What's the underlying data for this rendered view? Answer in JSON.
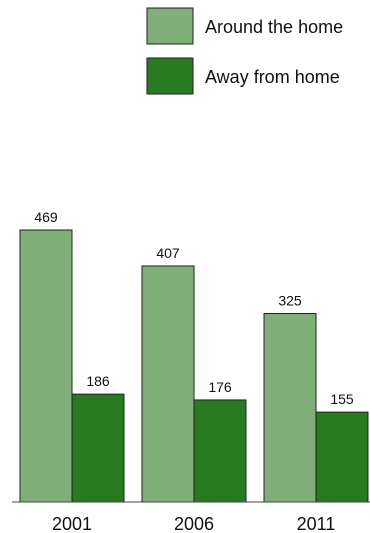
{
  "chart_data": {
    "type": "bar",
    "title": "",
    "xlabel": "",
    "ylabel": "",
    "categories": [
      "2001",
      "2006",
      "2011"
    ],
    "series": [
      {
        "name": "Around the home",
        "values": [
          469,
          407,
          325
        ],
        "color": "#7fae78"
      },
      {
        "name": "Away from home",
        "values": [
          186,
          176,
          155
        ],
        "color": "#277a20"
      }
    ],
    "ylim": [
      0,
      469
    ],
    "grid": false,
    "legend": "top-right",
    "data_labels": true
  }
}
